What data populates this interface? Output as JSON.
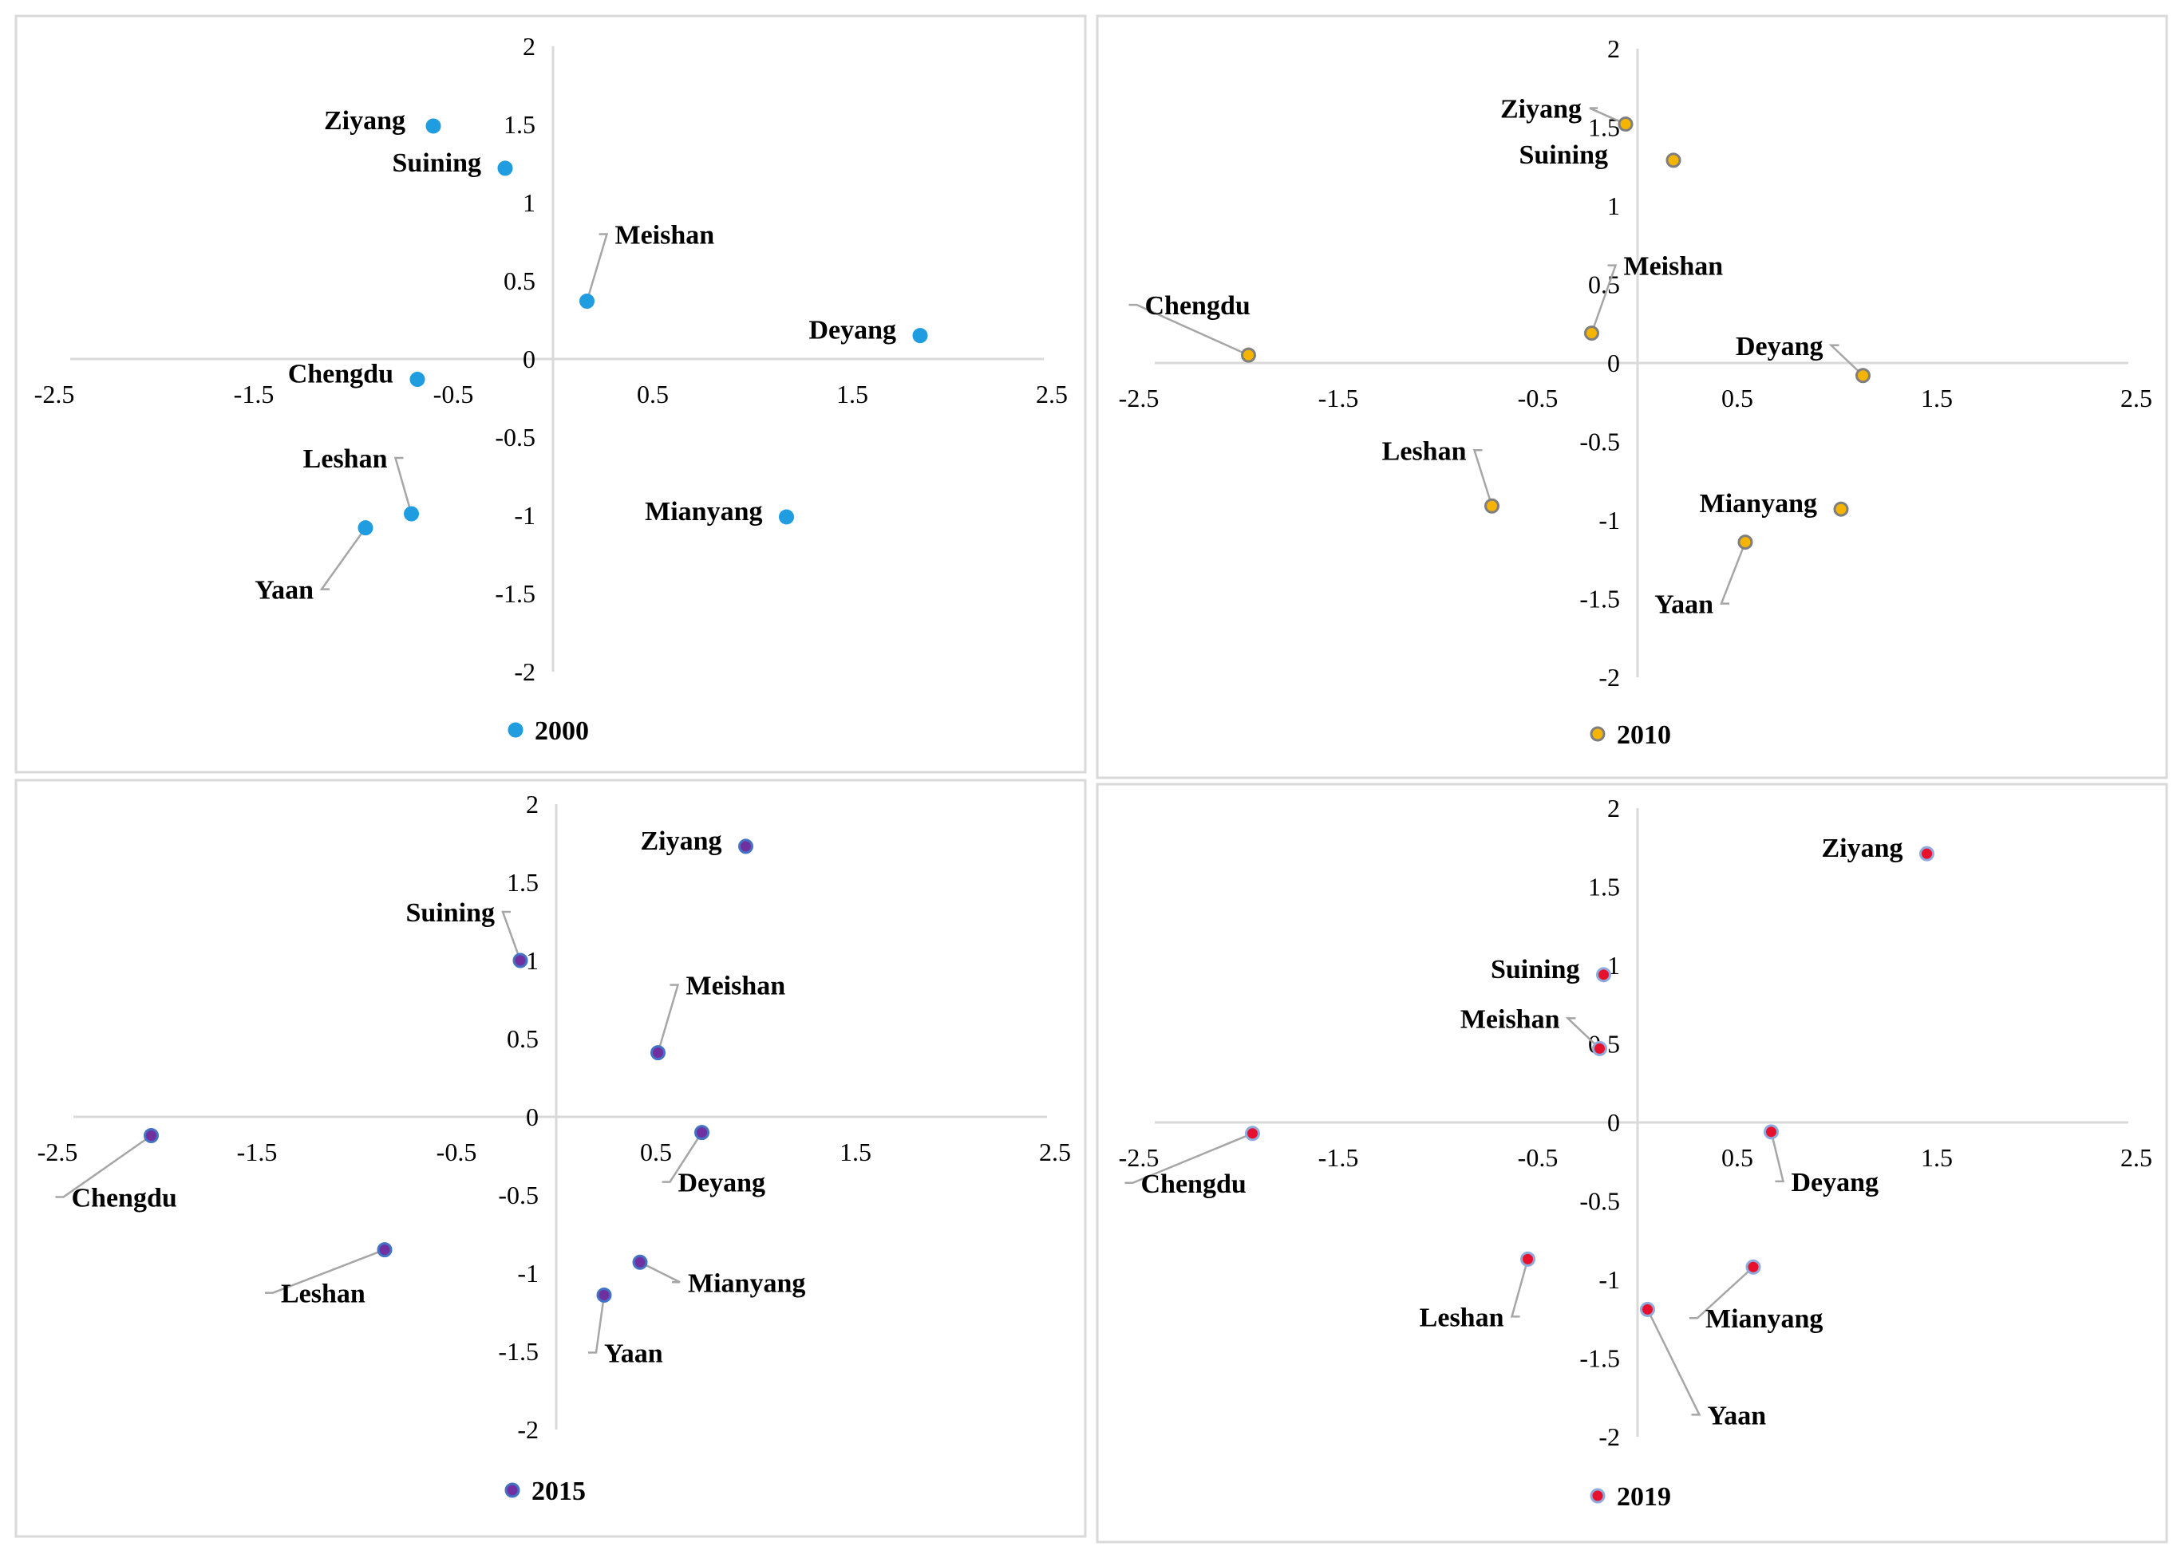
{
  "chart_data": [
    {
      "type": "scatter",
      "legend": "2000",
      "marker_fill": "#1f9de0",
      "marker_stroke": "#1f9de0",
      "xlim": [
        -2.5,
        2.5
      ],
      "ylim": [
        -2,
        2
      ],
      "x_ticks": [
        "-2.5",
        "-1.5",
        "-0.5",
        "0.5",
        "1.5",
        "2.5"
      ],
      "y_ticks": [
        "2",
        "1.5",
        "1",
        "0.5",
        "0",
        "-0.5",
        "-1",
        "-1.5",
        "-2"
      ],
      "points": [
        {
          "label": "Ziyang",
          "x": -0.6,
          "y": 1.49
        },
        {
          "label": "Suining",
          "x": -0.24,
          "y": 1.22
        },
        {
          "label": "Meishan",
          "x": 0.17,
          "y": 0.37
        },
        {
          "label": "Deyang",
          "x": 1.84,
          "y": 0.15
        },
        {
          "label": "Chengdu",
          "x": -0.68,
          "y": -0.13
        },
        {
          "label": "Leshan",
          "x": -0.71,
          "y": -0.99
        },
        {
          "label": "Yaan",
          "x": -0.94,
          "y": -1.08
        },
        {
          "label": "Mianyang",
          "x": 1.17,
          "y": -1.01
        }
      ]
    },
    {
      "type": "scatter",
      "legend": "2010",
      "marker_fill": "#f5b400",
      "marker_stroke": "#7f7f7f",
      "xlim": [
        -2.5,
        2.5
      ],
      "ylim": [
        -2,
        2
      ],
      "x_ticks": [
        "-2.5",
        "-1.5",
        "-0.5",
        "0.5",
        "1.5",
        "2.5"
      ],
      "y_ticks": [
        "2",
        "1.5",
        "1",
        "0.5",
        "0",
        "-0.5",
        "-1",
        "-1.5",
        "-2"
      ],
      "points": [
        {
          "label": "Ziyang",
          "x": -0.06,
          "y": 1.52
        },
        {
          "label": "Suining",
          "x": 0.18,
          "y": 1.29
        },
        {
          "label": "Meishan",
          "x": -0.23,
          "y": 0.19
        },
        {
          "label": "Chengdu",
          "x": -1.95,
          "y": 0.05
        },
        {
          "label": "Deyang",
          "x": 1.13,
          "y": -0.08
        },
        {
          "label": "Leshan",
          "x": -0.73,
          "y": -0.91
        },
        {
          "label": "Mianyang",
          "x": 1.02,
          "y": -0.93
        },
        {
          "label": "Yaan",
          "x": 0.54,
          "y": -1.14
        }
      ]
    },
    {
      "type": "scatter",
      "legend": "2015",
      "marker_fill": "#7030a0",
      "marker_stroke": "#4472c4",
      "xlim": [
        -2.5,
        2.5
      ],
      "ylim": [
        -2,
        2
      ],
      "x_ticks": [
        "-2.5",
        "-1.5",
        "-0.5",
        "0.5",
        "1.5",
        "2.5"
      ],
      "y_ticks": [
        "2",
        "1.5",
        "1",
        "0.5",
        "0",
        "-0.5",
        "-1",
        "-1.5",
        "-2"
      ],
      "points": [
        {
          "label": "Ziyang",
          "x": 0.95,
          "y": 1.73
        },
        {
          "label": "Suining",
          "x": -0.18,
          "y": 1.0
        },
        {
          "label": "Meishan",
          "x": 0.51,
          "y": 0.41
        },
        {
          "label": "Chengdu",
          "x": -2.03,
          "y": -0.12
        },
        {
          "label": "Deyang",
          "x": 0.73,
          "y": -0.1
        },
        {
          "label": "Leshan",
          "x": -0.86,
          "y": -0.85
        },
        {
          "label": "Mianyang",
          "x": 0.42,
          "y": -0.93
        },
        {
          "label": "Yaan",
          "x": 0.24,
          "y": -1.14
        }
      ]
    },
    {
      "type": "scatter",
      "legend": "2019",
      "marker_fill": "#e8112d",
      "marker_stroke": "#8faadc",
      "xlim": [
        -2.5,
        2.5
      ],
      "ylim": [
        -2,
        2
      ],
      "x_ticks": [
        "-2.5",
        "-1.5",
        "-0.5",
        "0.5",
        "1.5",
        "2.5"
      ],
      "y_ticks": [
        "2",
        "1.5",
        "1",
        "0.5",
        "0",
        "-0.5",
        "-1",
        "-1.5",
        "-2"
      ],
      "points": [
        {
          "label": "Ziyang",
          "x": 1.45,
          "y": 1.71
        },
        {
          "label": "Suining",
          "x": -0.17,
          "y": 0.94
        },
        {
          "label": "Meishan",
          "x": -0.19,
          "y": 0.47
        },
        {
          "label": "Chengdu",
          "x": -1.93,
          "y": -0.07
        },
        {
          "label": "Deyang",
          "x": 0.67,
          "y": -0.06
        },
        {
          "label": "Leshan",
          "x": -0.55,
          "y": -0.87
        },
        {
          "label": "Mianyang",
          "x": 0.58,
          "y": -0.92
        },
        {
          "label": "Yaan",
          "x": 0.05,
          "y": -1.19
        }
      ]
    }
  ]
}
